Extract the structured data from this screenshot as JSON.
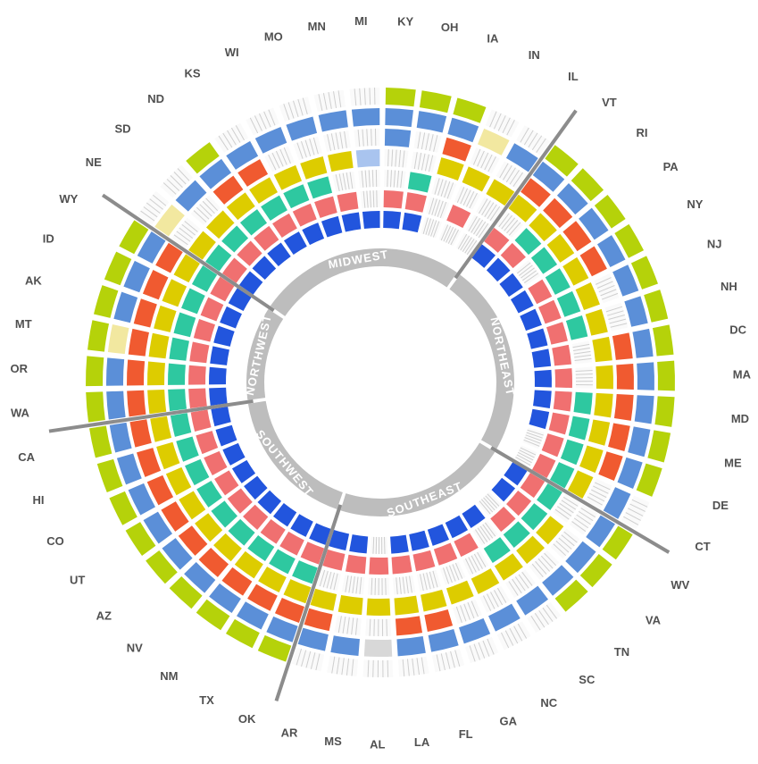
{
  "chart_data": {
    "type": "radial-heatmap",
    "title": "",
    "regions": [
      "MIDWEST",
      "NORTHEAST",
      "SOUTHEAST",
      "SOUTHWEST",
      "NORTHWEST"
    ],
    "states": [
      "MI",
      "KY",
      "OH",
      "IA",
      "IN",
      "IL",
      "VT",
      "RI",
      "PA",
      "NY",
      "NJ",
      "NH",
      "DC",
      "MA",
      "MD",
      "ME",
      "DE",
      "CT",
      "WV",
      "VA",
      "TN",
      "SC",
      "NC",
      "GA",
      "FL",
      "LA",
      "AL",
      "MS",
      "AR",
      "OK",
      "TX",
      "NM",
      "NV",
      "AZ",
      "UT",
      "CO",
      "HI",
      "CA",
      "WA",
      "OR",
      "MT",
      "AK",
      "ID",
      "WY",
      "NE",
      "SD",
      "ND",
      "KS",
      "WI",
      "MO",
      "MN"
    ],
    "state_region": [
      "MIDWEST",
      "MIDWEST",
      "MIDWEST",
      "MIDWEST",
      "MIDWEST",
      "MIDWEST",
      "NORTHEAST",
      "NORTHEAST",
      "NORTHEAST",
      "NORTHEAST",
      "NORTHEAST",
      "NORTHEAST",
      "NORTHEAST",
      "NORTHEAST",
      "NORTHEAST",
      "NORTHEAST",
      "NORTHEAST",
      "NORTHEAST",
      "SOUTHEAST",
      "SOUTHEAST",
      "SOUTHEAST",
      "SOUTHEAST",
      "SOUTHEAST",
      "SOUTHEAST",
      "SOUTHEAST",
      "SOUTHEAST",
      "SOUTHEAST",
      "SOUTHEAST",
      "SOUTHEAST",
      "SOUTHWEST",
      "SOUTHWEST",
      "SOUTHWEST",
      "SOUTHWEST",
      "SOUTHWEST",
      "SOUTHWEST",
      "SOUTHWEST",
      "SOUTHWEST",
      "SOUTHWEST",
      "NORTHWEST",
      "NORTHWEST",
      "NORTHWEST",
      "NORTHWEST",
      "NORTHWEST",
      "NORTHWEST",
      "MIDWEST",
      "MIDWEST",
      "MIDWEST",
      "MIDWEST",
      "MIDWEST",
      "MIDWEST",
      "MIDWEST"
    ],
    "ring_colors": [
      "#2255dd",
      "#f07070",
      "#2ec8a0",
      "#ddcc00",
      "#f05a30",
      "#5b8fd8",
      "#b5d20a"
    ],
    "pale_colors": {
      "blue": "#a9c4ef",
      "green": "#aee8dc",
      "yellow": "#f2e8a0",
      "orange": "#f8c0a8",
      "empty": "#d8d8d8"
    },
    "cells": [
      "B..a.b.",
      "BR..bbg",
      "BRt..bg",
      "...yObg",
      ".R.y.p.",
      "...y.b.",
      "BR.yObg",
      "BRtyObg",
      "B.tyObg",
      "BRtyObg",
      "BRty.bg",
      "BRty.bg",
      "BR.yObg",
      "BR.yObg",
      "BRtyObg",
      "BRtyObg",
      ".RtyObg",
      ".Rty.b.",
      "BRt..bg",
      "BRty.bg",
      ".Rty.bg",
      "B.ty.b.",
      "BR.y.b.",
      "BR.y.b.",
      "BR.yOb.",
      "BR.yOb.",
      ".R.y.e.",
      "BR.y.b.",
      "BR.yOb.",
      "BRtyObg",
      "BRtyObg",
      "BRtyObg",
      "BRtyObg",
      "BRtyObg",
      "BRtyObg",
      "BRtyObg",
      "BRtyObg",
      "BRtyObg",
      "BRtyObg",
      "BRtyObg",
      "BRtyOpg",
      "BRtyObg",
      "BRtyObg",
      "BRtyObg",
      "BRty.p.",
      "BRty.b.",
      "BRtyObg",
      "BRtyOb.",
      "BRty.b.",
      "BRty.b.",
      "BR.y.b."
    ]
  }
}
